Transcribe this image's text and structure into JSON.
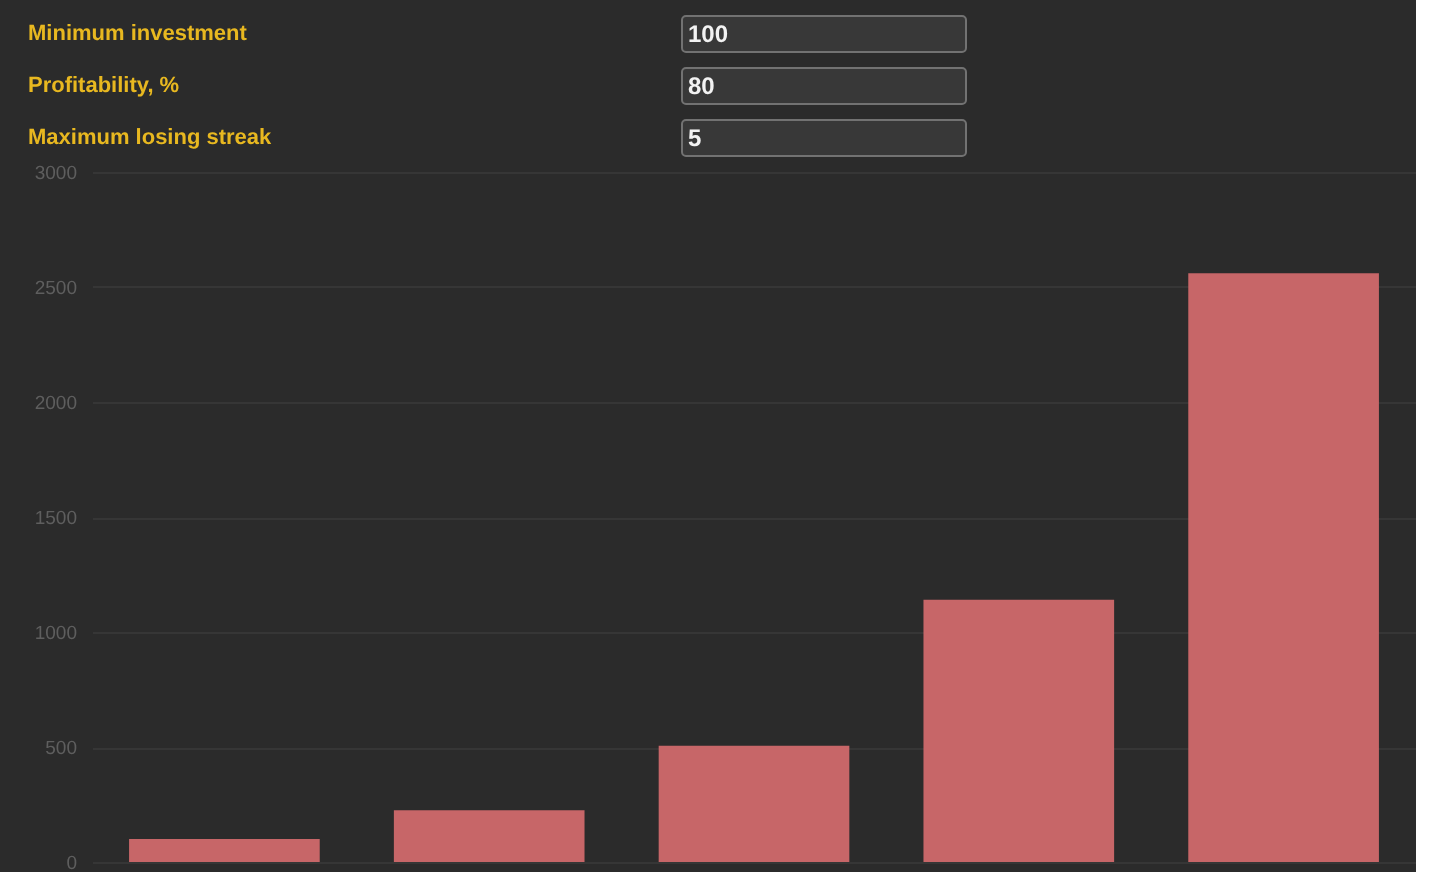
{
  "chart_data": [
    {
      "type": "other",
      "categories": [
        "Minimum investment",
        "Profitability, %",
        "Maximum losing streak"
      ],
      "values": [
        100,
        80,
        5
      ],
      "data_labels": true
    },
    {
      "type": "bar",
      "categories": [
        null,
        null,
        null,
        null,
        null
      ],
      "values": [
        100,
        225,
        505,
        1140,
        2560
      ],
      "color": "#c76668",
      "ylim": [
        0,
        3000
      ],
      "yticks": [
        0,
        500,
        1000,
        1500,
        2000,
        2500,
        3000
      ],
      "grid": "y",
      "tick_labels": "y"
    }
  ]
}
